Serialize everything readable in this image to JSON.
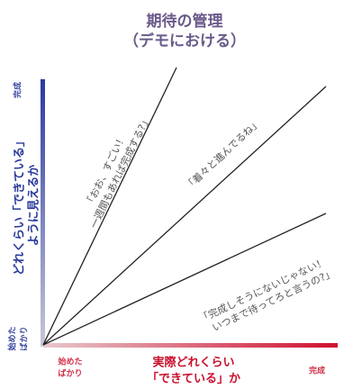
{
  "title": "期待の管理",
  "subtitle": "（デモにおける）",
  "y_axis": {
    "label": [
      "どれくらい「できている」",
      "ように見えるか"
    ],
    "top": "完成",
    "bottom": [
      "始めた",
      "ばかり"
    ]
  },
  "x_axis": {
    "label": [
      "実際どれくらい",
      "「できている」か"
    ],
    "left": [
      "始めた",
      "ばかり"
    ],
    "right": "完成"
  },
  "annotations": [
    [
      "「おお、すごい！",
      "一週間もあれば完成する?」"
    ],
    [
      "「着々と進んでるね」"
    ],
    [
      "「完成しそうにないじゃない！",
      "いつまで待ってろと言うの?」"
    ]
  ]
}
